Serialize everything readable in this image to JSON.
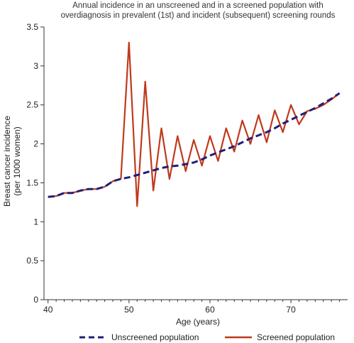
{
  "chart_data": {
    "type": "line",
    "title_lines": [
      "Annual incidence in an unscreened and in a screened  population with",
      "overdiagnosis in prevalent (1st) and incident (subsequent) screening rounds"
    ],
    "xlabel": "Age (years)",
    "ylabel_lines": [
      "Breast cancer incidence",
      "(per 1000 women)"
    ],
    "xlim": [
      39.5,
      77
    ],
    "ylim": [
      0,
      3.5
    ],
    "x_ticks": [
      40,
      50,
      60,
      70
    ],
    "y_ticks": [
      0,
      0.5,
      1,
      1.5,
      2,
      2.5,
      3,
      3.5
    ],
    "y_tick_labels": [
      "0",
      "0.5",
      "1",
      "1.5",
      "2",
      "2.5",
      "3",
      "3.5"
    ],
    "legend_position": "bottom",
    "series": [
      {
        "name": "Unscreened population",
        "color": "#1f1f7a",
        "style": "dashed",
        "x": [
          40,
          41,
          42,
          43,
          44,
          45,
          46,
          47,
          48,
          49,
          50,
          51,
          52,
          53,
          54,
          55,
          56,
          57,
          58,
          59,
          60,
          61,
          62,
          63,
          64,
          65,
          66,
          67,
          68,
          69,
          70,
          71,
          72,
          73,
          74,
          75,
          76
        ],
        "values": [
          1.32,
          1.33,
          1.37,
          1.37,
          1.4,
          1.42,
          1.42,
          1.45,
          1.52,
          1.55,
          1.57,
          1.6,
          1.63,
          1.66,
          1.69,
          1.71,
          1.72,
          1.74,
          1.76,
          1.8,
          1.85,
          1.89,
          1.93,
          1.97,
          2.02,
          2.07,
          2.11,
          2.15,
          2.2,
          2.26,
          2.31,
          2.36,
          2.41,
          2.46,
          2.52,
          2.58,
          2.65
        ]
      },
      {
        "name": "Screened population",
        "color": "#c0391b",
        "style": "solid",
        "x": [
          40,
          41,
          42,
          43,
          44,
          45,
          46,
          47,
          48,
          49,
          50,
          51,
          52,
          53,
          54,
          55,
          56,
          57,
          58,
          59,
          60,
          61,
          62,
          63,
          64,
          65,
          66,
          67,
          68,
          69,
          70,
          71,
          72,
          73,
          74,
          75,
          76
        ],
        "values": [
          1.32,
          1.33,
          1.37,
          1.37,
          1.4,
          1.42,
          1.42,
          1.45,
          1.52,
          1.55,
          3.3,
          1.2,
          2.8,
          1.4,
          2.2,
          1.55,
          2.1,
          1.65,
          2.05,
          1.72,
          2.1,
          1.78,
          2.2,
          1.9,
          2.3,
          2.0,
          2.37,
          2.02,
          2.43,
          2.15,
          2.5,
          2.25,
          2.42,
          2.45,
          2.5,
          2.57,
          2.65
        ]
      }
    ]
  }
}
